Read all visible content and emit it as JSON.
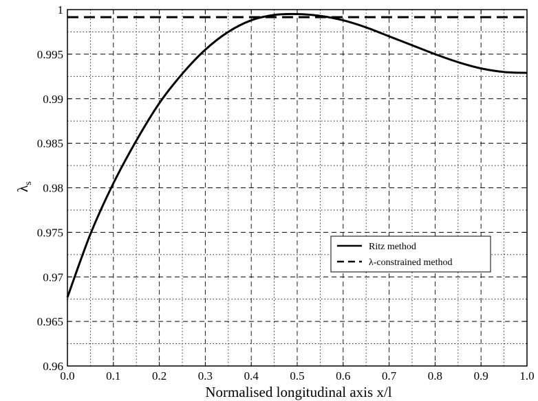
{
  "chart_data": {
    "type": "line",
    "xlabel": "Normalised longitudinal axis x/l",
    "ylabel_symbol": "λ",
    "ylabel_subscript": "s",
    "xlim": [
      0.0,
      1.0
    ],
    "ylim": [
      0.96,
      1.0
    ],
    "x_ticks": [
      "0.0",
      "0.1",
      "0.2",
      "0.3",
      "0.4",
      "0.5",
      "0.6",
      "0.7",
      "0.8",
      "0.9",
      "1.0"
    ],
    "y_ticks": [
      "0.96",
      "0.965",
      "0.97",
      "0.975",
      "0.98",
      "0.985",
      "0.99",
      "0.995",
      "1"
    ],
    "grid": "major dashed, minor dotted",
    "legend_position": "center-right",
    "series": [
      {
        "name": "Ritz method",
        "style": "solid",
        "color": "#000000",
        "x": [
          0.0,
          0.05,
          0.1,
          0.15,
          0.2,
          0.25,
          0.3,
          0.35,
          0.4,
          0.45,
          0.5,
          0.55,
          0.6,
          0.65,
          0.7,
          0.75,
          0.8,
          0.85,
          0.9,
          0.95,
          1.0
        ],
        "y": [
          0.9677,
          0.9748,
          0.9805,
          0.9853,
          0.9895,
          0.9928,
          0.9955,
          0.9975,
          0.9988,
          0.9994,
          0.9995,
          0.9993,
          0.9988,
          0.998,
          0.997,
          0.996,
          0.995,
          0.9941,
          0.9934,
          0.993,
          0.9929
        ]
      },
      {
        "name": "λ-constrained method",
        "style": "dashed",
        "color": "#000000",
        "x": [
          0.0,
          1.0
        ],
        "y": [
          0.99915,
          0.99915
        ]
      }
    ]
  }
}
